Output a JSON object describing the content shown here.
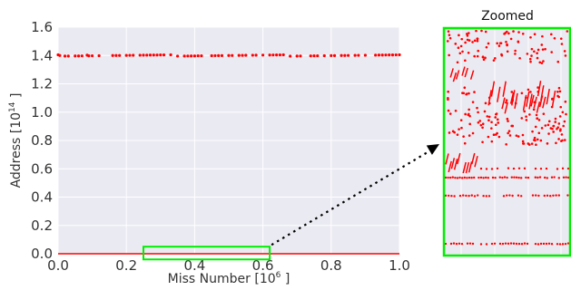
{
  "chart_data": [
    {
      "type": "scatter",
      "xlabel": {
        "base": "Miss Number [10",
        "exp": "6",
        "close": " ]"
      },
      "ylabel": {
        "base": "Address [10",
        "exp": "14",
        "close": " ]"
      },
      "xlim": [
        0.0,
        1.0
      ],
      "ylim": [
        0.0,
        1.6
      ],
      "x_ticks": [
        "0.0",
        "0.2",
        "0.4",
        "0.6",
        "0.8",
        "1.0"
      ],
      "y_ticks": [
        "0.0",
        "0.2",
        "0.4",
        "0.6",
        "0.8",
        "1.0",
        "1.2",
        "1.4",
        "1.6"
      ],
      "grid": true,
      "background": "#eaeaf2",
      "series": [
        {
          "color": "#ff0000",
          "band_y": 1.4,
          "points_x": [
            0.0,
            0.005,
            0.02,
            0.03,
            0.05,
            0.06,
            0.07,
            0.085,
            0.09,
            0.1,
            0.12,
            0.16,
            0.17,
            0.18,
            0.2,
            0.21,
            0.22,
            0.24,
            0.25,
            0.26,
            0.27,
            0.28,
            0.29,
            0.3,
            0.31,
            0.33,
            0.35,
            0.37,
            0.38,
            0.39,
            0.4,
            0.41,
            0.42,
            0.45,
            0.46,
            0.47,
            0.48,
            0.5,
            0.51,
            0.53,
            0.54,
            0.55,
            0.57,
            0.58,
            0.6,
            0.62,
            0.63,
            0.64,
            0.65,
            0.66,
            0.68,
            0.7,
            0.71,
            0.74,
            0.75,
            0.76,
            0.78,
            0.8,
            0.81,
            0.83,
            0.84,
            0.85,
            0.87,
            0.88,
            0.9,
            0.93,
            0.94,
            0.95,
            0.96,
            0.97,
            0.98,
            0.99,
            1.0
          ]
        },
        {
          "color": "#ff0000",
          "band_y": 0.0,
          "x_range": [
            0.0,
            1.0
          ]
        }
      ],
      "highlight": {
        "x_range": [
          0.25,
          0.62
        ],
        "y_range": [
          -0.04,
          0.05
        ],
        "color": "#00ee00"
      }
    },
    {
      "type": "scatter",
      "title": "Zoomed",
      "border_color": "#00ee00",
      "point_color": "#ff0000",
      "grid": true
    }
  ]
}
